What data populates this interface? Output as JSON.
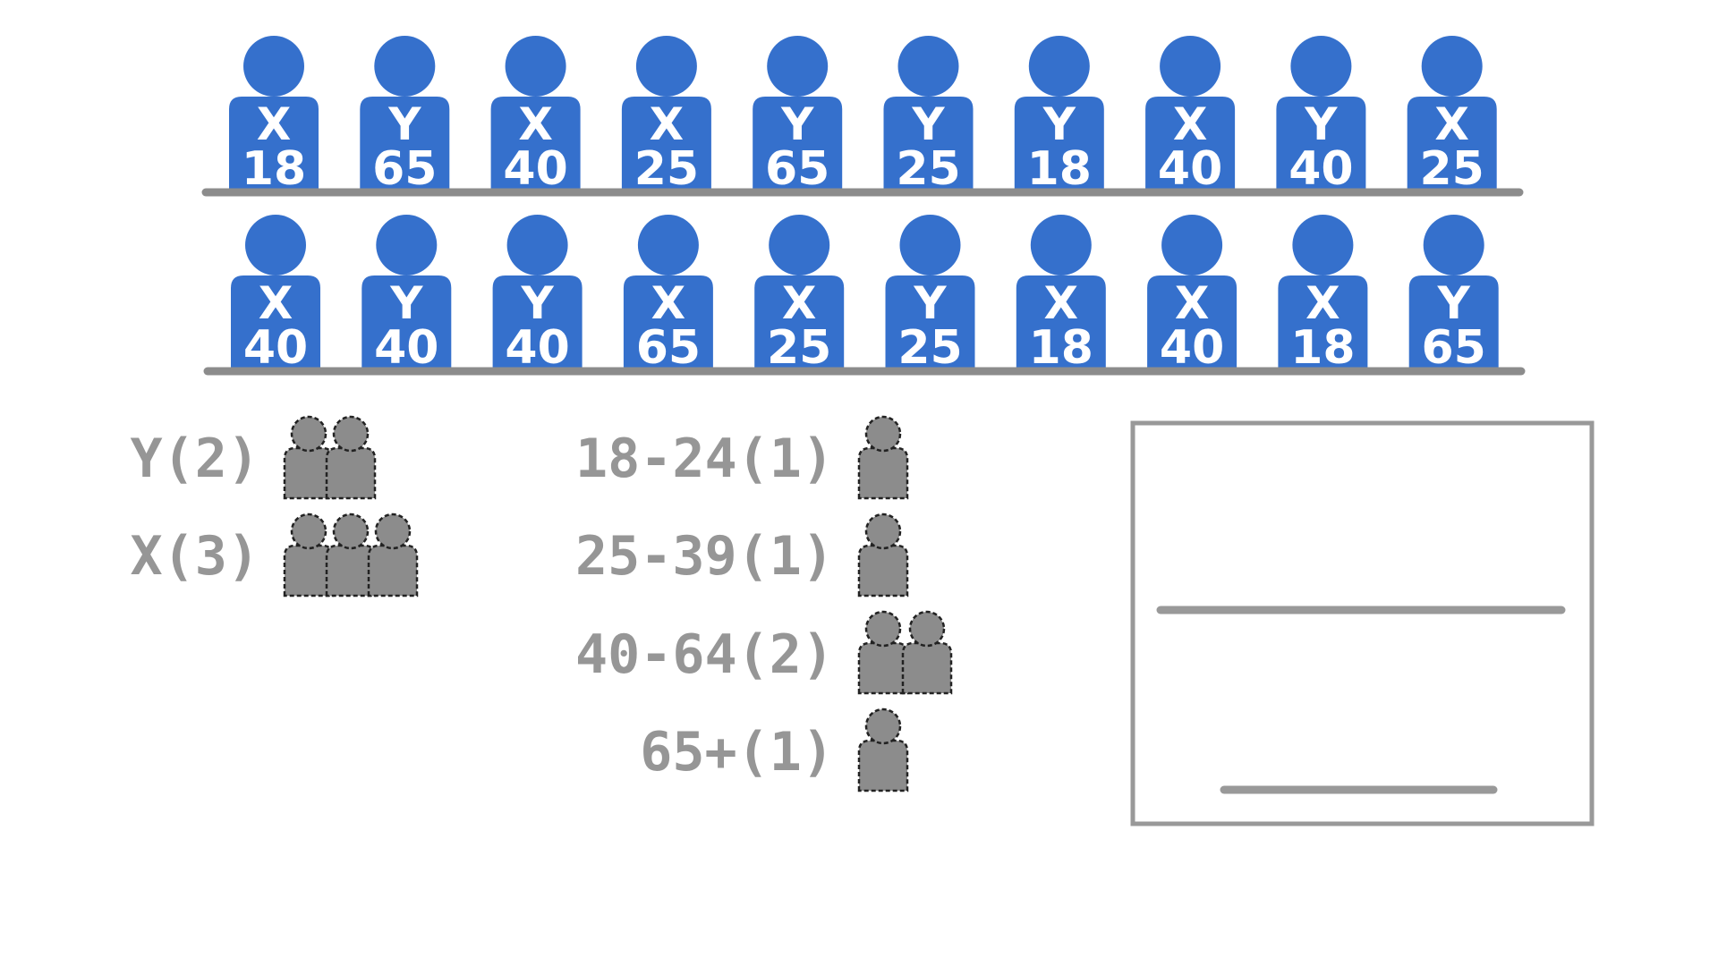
{
  "colors": {
    "person_fill": "#3570cc",
    "person_text": "#ffffff",
    "shelf": "#8c8c8c",
    "legend_text": "#969696",
    "legend_icon": "#8c8c8c",
    "legend_icon_outline": "#222222",
    "box_border": "#999999",
    "box_lines": "#999999"
  },
  "icons": {
    "person": "person-icon",
    "legend_person": "legend-person-icon"
  },
  "rows": [
    {
      "people": [
        {
          "group": "X",
          "age": "18"
        },
        {
          "group": "Y",
          "age": "65"
        },
        {
          "group": "X",
          "age": "40"
        },
        {
          "group": "X",
          "age": "25"
        },
        {
          "group": "Y",
          "age": "65"
        },
        {
          "group": "Y",
          "age": "25"
        },
        {
          "group": "Y",
          "age": "18"
        },
        {
          "group": "X",
          "age": "40"
        },
        {
          "group": "Y",
          "age": "40"
        },
        {
          "group": "X",
          "age": "25"
        }
      ]
    },
    {
      "people": [
        {
          "group": "X",
          "age": "40"
        },
        {
          "group": "Y",
          "age": "40"
        },
        {
          "group": "Y",
          "age": "40"
        },
        {
          "group": "X",
          "age": "65"
        },
        {
          "group": "X",
          "age": "25"
        },
        {
          "group": "Y",
          "age": "25"
        },
        {
          "group": "X",
          "age": "18"
        },
        {
          "group": "X",
          "age": "40"
        },
        {
          "group": "X",
          "age": "18"
        },
        {
          "group": "Y",
          "age": "65"
        }
      ]
    }
  ],
  "group_legend": [
    {
      "label": "Y(2)",
      "count": 2
    },
    {
      "label": "X(3)",
      "count": 3
    }
  ],
  "age_legend": [
    {
      "label": "18-24(1)",
      "count": 1
    },
    {
      "label": "25-39(1)",
      "count": 1
    },
    {
      "label": "40-64(2)",
      "count": 2
    },
    {
      "label": "65+(1)",
      "count": 1
    }
  ]
}
